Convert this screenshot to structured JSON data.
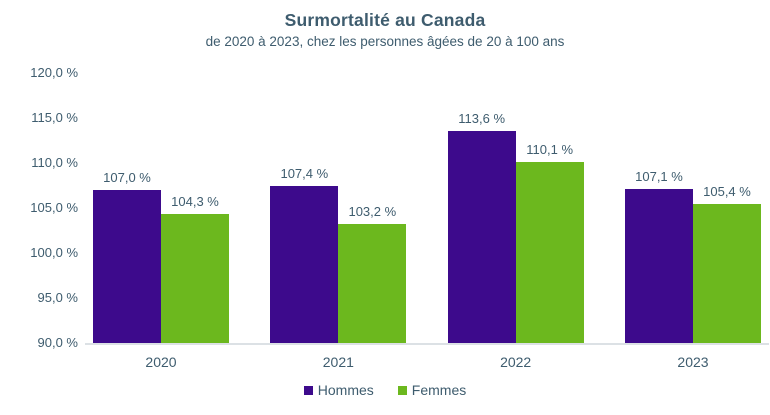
{
  "chart_data": {
    "type": "bar",
    "title": "Surmortalité au Canada",
    "subtitle": "de 2020 à 2023, chez les personnes âgées de 20 à 100 ans",
    "categories": [
      "2020",
      "2021",
      "2022",
      "2023"
    ],
    "series": [
      {
        "name": "Hommes",
        "color": "#3D0A8C",
        "values": [
          107.0,
          107.4,
          113.6,
          107.1
        ],
        "labels": [
          "107,0 %",
          "107,4 %",
          "113,6 %",
          "107,1 %"
        ]
      },
      {
        "name": "Femmes",
        "color": "#6CB81E",
        "values": [
          104.3,
          103.2,
          110.1,
          105.4
        ],
        "labels": [
          "104,3 %",
          "103,2 %",
          "110,1 %",
          "105,4 %"
        ]
      }
    ],
    "ylim": [
      90,
      120
    ],
    "yticks": [
      {
        "value": 120,
        "label": "120,0 %"
      },
      {
        "value": 115,
        "label": "115,0 %"
      },
      {
        "value": 110,
        "label": "110,0 %"
      },
      {
        "value": 105,
        "label": "105,0 %"
      },
      {
        "value": 100,
        "label": "100,0 %"
      },
      {
        "value": 95,
        "label": "95,0 %"
      },
      {
        "value": 90,
        "label": "90,0 %"
      }
    ],
    "grid": false,
    "legend_position": "bottom",
    "xlabel": "",
    "ylabel": ""
  },
  "colors": {
    "text": "#3E5C6E",
    "axis_line": "#DCE1E5",
    "background": "#FFFFFF"
  }
}
